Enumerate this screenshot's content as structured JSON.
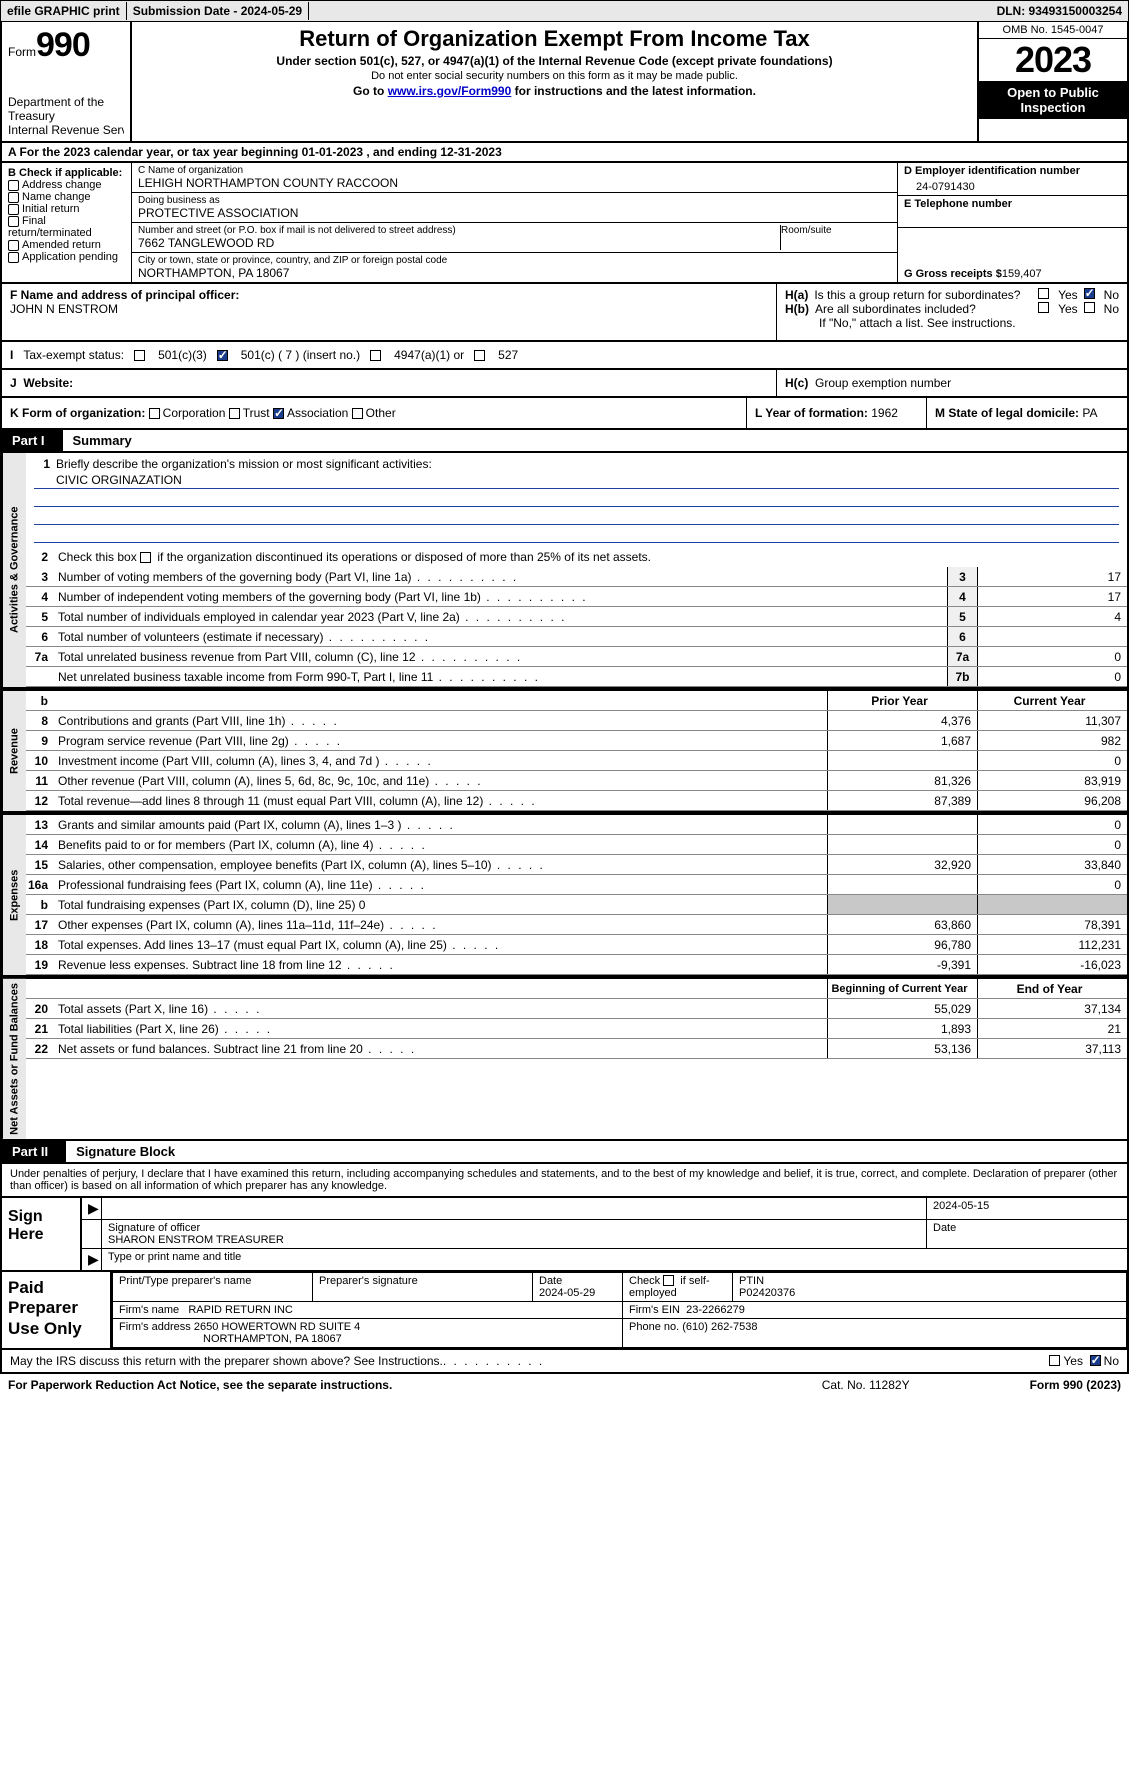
{
  "topbar": {
    "efile": "efile GRAPHIC print",
    "submission": "Submission Date - 2024-05-29",
    "dln": "DLN: 93493150003254"
  },
  "header": {
    "form_word": "Form",
    "form_num": "990",
    "dept": "Department of the Treasury",
    "irs": "Internal Revenue Service",
    "title": "Return of Organization Exempt From Income Tax",
    "sub1": "Under section 501(c), 527, or 4947(a)(1) of the Internal Revenue Code (except private foundations)",
    "sub2": "Do not enter social security numbers on this form as it may be made public.",
    "sub3_pre": "Go to ",
    "sub3_link": "www.irs.gov/Form990",
    "sub3_post": " for instructions and the latest information.",
    "omb": "OMB No. 1545-0047",
    "year": "2023",
    "open": "Open to Public Inspection"
  },
  "row_a": "A  For the 2023 calendar year, or tax year beginning 01-01-2023   , and ending 12-31-2023",
  "col_b": {
    "title": "B Check if applicable:",
    "items": [
      "Address change",
      "Name change",
      "Initial return",
      "Final return/terminated",
      "Amended return",
      "Application pending"
    ]
  },
  "col_c": {
    "name_lbl": "C Name of organization",
    "name": "LEHIGH NORTHAMPTON COUNTY RACCOON",
    "dba_lbl": "Doing business as",
    "dba": "PROTECTIVE ASSOCIATION",
    "addr_lbl": "Number and street (or P.O. box if mail is not delivered to street address)",
    "addr": "7662 TANGLEWOOD RD",
    "room_lbl": "Room/suite",
    "city_lbl": "City or town, state or province, country, and ZIP or foreign postal code",
    "city": "NORTHAMPTON, PA  18067"
  },
  "col_d": {
    "ein_lbl": "D Employer identification number",
    "ein": "24-0791430",
    "tel_lbl": "E Telephone number",
    "gross_lbl": "G Gross receipts $ ",
    "gross": "159,407"
  },
  "row_f": {
    "lbl": "F  Name and address of principal officer:",
    "val": "JOHN N ENSTROM"
  },
  "row_h": {
    "ha_lbl": "H(a)",
    "ha_txt": "Is this a group return for subordinates?",
    "hb_lbl": "H(b)",
    "hb_txt": "Are all subordinates included?",
    "hb_note": "If \"No,\" attach a list. See instructions.",
    "hc_lbl": "H(c)",
    "hc_txt": "Group exemption number",
    "yes": "Yes",
    "no": "No"
  },
  "row_i": {
    "lbl": "Tax-exempt status:",
    "o1": "501(c)(3)",
    "o2": "501(c) ( 7 ) (insert no.)",
    "o3": "4947(a)(1) or",
    "o4": "527"
  },
  "row_j": {
    "lbl": "J",
    "txt": "Website:"
  },
  "row_k": {
    "lbl": "K Form of organization:",
    "o1": "Corporation",
    "o2": "Trust",
    "o3": "Association",
    "o4": "Other",
    "l_lbl": "L Year of formation: ",
    "l_val": "1962",
    "m_lbl": "M State of legal domicile: ",
    "m_val": "PA"
  },
  "part1": {
    "tag": "Part I",
    "txt": "Summary"
  },
  "summary": {
    "vtabs": [
      "Activities & Governance",
      "Revenue",
      "Expenses",
      "Net Assets or Fund Balances"
    ],
    "mission_lbl": "Briefly describe the organization's mission or most significant activities:",
    "mission": "CIVIC ORGINAZATION",
    "line2": "Check this box        if the organization discontinued its operations or disposed of more than 25% of its net assets.",
    "gov": [
      {
        "n": "3",
        "d": "Number of voting members of the governing body (Part VI, line 1a)",
        "b": "3",
        "v": "17"
      },
      {
        "n": "4",
        "d": "Number of independent voting members of the governing body (Part VI, line 1b)",
        "b": "4",
        "v": "17"
      },
      {
        "n": "5",
        "d": "Total number of individuals employed in calendar year 2023 (Part V, line 2a)",
        "b": "5",
        "v": "4"
      },
      {
        "n": "6",
        "d": "Total number of volunteers (estimate if necessary)",
        "b": "6",
        "v": ""
      },
      {
        "n": "7a",
        "d": "Total unrelated business revenue from Part VIII, column (C), line 12",
        "b": "7a",
        "v": "0"
      },
      {
        "n": "",
        "d": "Net unrelated business taxable income from Form 990-T, Part I, line 11",
        "b": "7b",
        "v": "0"
      }
    ],
    "hdr_b": "b",
    "hdr_prior": "Prior Year",
    "hdr_curr": "Current Year",
    "rev": [
      {
        "n": "8",
        "d": "Contributions and grants (Part VIII, line 1h)",
        "p": "4,376",
        "c": "11,307"
      },
      {
        "n": "9",
        "d": "Program service revenue (Part VIII, line 2g)",
        "p": "1,687",
        "c": "982"
      },
      {
        "n": "10",
        "d": "Investment income (Part VIII, column (A), lines 3, 4, and 7d )",
        "p": "",
        "c": "0"
      },
      {
        "n": "11",
        "d": "Other revenue (Part VIII, column (A), lines 5, 6d, 8c, 9c, 10c, and 11e)",
        "p": "81,326",
        "c": "83,919"
      },
      {
        "n": "12",
        "d": "Total revenue—add lines 8 through 11 (must equal Part VIII, column (A), line 12)",
        "p": "87,389",
        "c": "96,208"
      }
    ],
    "exp": [
      {
        "n": "13",
        "d": "Grants and similar amounts paid (Part IX, column (A), lines 1–3 )",
        "p": "",
        "c": "0"
      },
      {
        "n": "14",
        "d": "Benefits paid to or for members (Part IX, column (A), line 4)",
        "p": "",
        "c": "0"
      },
      {
        "n": "15",
        "d": "Salaries, other compensation, employee benefits (Part IX, column (A), lines 5–10)",
        "p": "32,920",
        "c": "33,840"
      },
      {
        "n": "16a",
        "d": "Professional fundraising fees (Part IX, column (A), line 11e)",
        "p": "",
        "c": "0"
      },
      {
        "n": "b",
        "d": "Total fundraising expenses (Part IX, column (D), line 25) 0",
        "p": "shade",
        "c": "shade"
      },
      {
        "n": "17",
        "d": "Other expenses (Part IX, column (A), lines 11a–11d, 11f–24e)",
        "p": "63,860",
        "c": "78,391"
      },
      {
        "n": "18",
        "d": "Total expenses. Add lines 13–17 (must equal Part IX, column (A), line 25)",
        "p": "96,780",
        "c": "112,231"
      },
      {
        "n": "19",
        "d": "Revenue less expenses. Subtract line 18 from line 12",
        "p": "-9,391",
        "c": "-16,023"
      }
    ],
    "hdr_beg": "Beginning of Current Year",
    "hdr_end": "End of Year",
    "net": [
      {
        "n": "20",
        "d": "Total assets (Part X, line 16)",
        "p": "55,029",
        "c": "37,134"
      },
      {
        "n": "21",
        "d": "Total liabilities (Part X, line 26)",
        "p": "1,893",
        "c": "21"
      },
      {
        "n": "22",
        "d": "Net assets or fund balances. Subtract line 21 from line 20",
        "p": "53,136",
        "c": "37,113"
      }
    ]
  },
  "part2": {
    "tag": "Part II",
    "txt": "Signature Block"
  },
  "sig_intro": "Under penalties of perjury, I declare that I have examined this return, including accompanying schedules and statements, and to the best of my knowledge and belief, it is true, correct, and complete. Declaration of preparer (other than officer) is based on all information of which preparer has any knowledge.",
  "sign": {
    "lab": "Sign Here",
    "date": "2024-05-15",
    "sig_lbl": "Signature of officer",
    "name": "SHARON ENSTROM  TREASURER",
    "name_lbl": "Type or print name and title",
    "date_lbl": "Date"
  },
  "paid": {
    "lab": "Paid Preparer Use Only",
    "h1": "Print/Type preparer's name",
    "h2": "Preparer's signature",
    "h3": "Date",
    "h3v": "2024-05-29",
    "h4": "Check         if self-employed",
    "h5": "PTIN",
    "h5v": "P02420376",
    "firm_lbl": "Firm's name",
    "firm": "RAPID RETURN INC",
    "ein_lbl": "Firm's EIN",
    "ein": "23-2266279",
    "addr_lbl": "Firm's address",
    "addr1": "2650 HOWERTOWN RD SUITE 4",
    "addr2": "NORTHAMPTON, PA  18067",
    "phone_lbl": "Phone no.",
    "phone": "(610) 262-7538"
  },
  "discuss": {
    "txt": "May the IRS discuss this return with the preparer shown above? See Instructions.",
    "yes": "Yes",
    "no": "No"
  },
  "footer": {
    "left": "For Paperwork Reduction Act Notice, see the separate instructions.",
    "cat": "Cat. No. 11282Y",
    "right": "Form 990 (2023)"
  }
}
